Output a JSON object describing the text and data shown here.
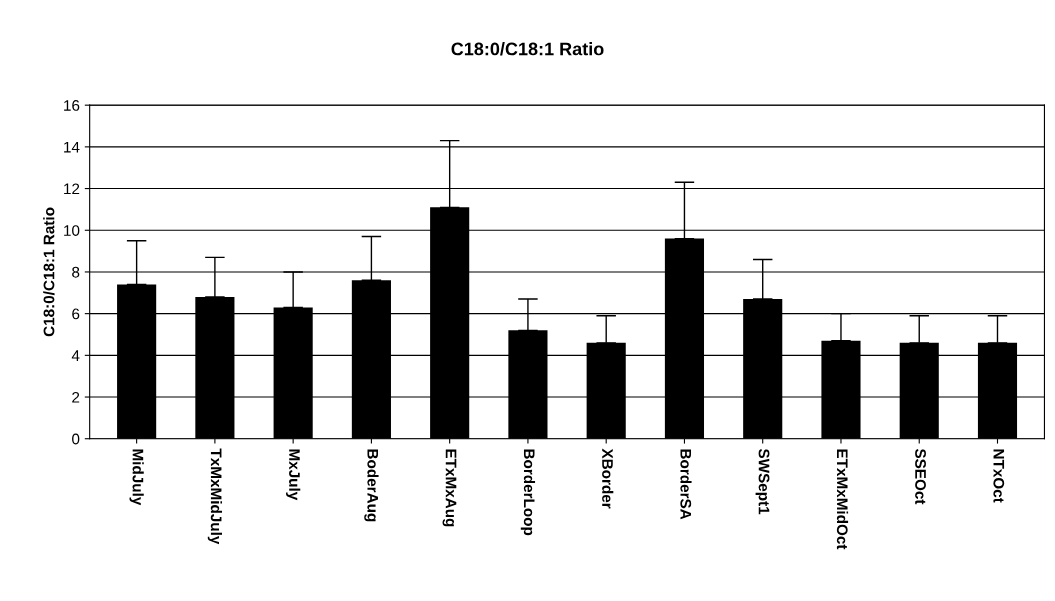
{
  "chart_data": {
    "type": "bar",
    "title": "C18:0/C18:1 Ratio",
    "ylabel": "C18:0/C18:1 Ratio",
    "categories": [
      "MidJuly",
      "TxMxMidJuly",
      "MxJuly",
      "BoderAug",
      "ETxMxAug",
      "BorderLoop",
      "XBorder",
      "BorderSA",
      "SWSept1",
      "ETxMxMidOct",
      "SSEOct",
      "NTxOct"
    ],
    "values": [
      7.4,
      6.8,
      6.3,
      7.6,
      11.1,
      5.2,
      4.6,
      9.6,
      6.7,
      4.7,
      4.6,
      4.6
    ],
    "errors": [
      [
        7.4,
        9.5
      ],
      [
        6.8,
        8.7
      ],
      [
        6.3,
        8.0
      ],
      [
        7.6,
        9.7
      ],
      [
        11.1,
        14.3
      ],
      [
        5.2,
        6.7
      ],
      [
        4.6,
        5.9
      ],
      [
        9.6,
        12.3
      ],
      [
        6.7,
        8.6
      ],
      [
        4.7,
        6.0
      ],
      [
        4.6,
        5.9
      ],
      [
        4.6,
        5.9
      ]
    ],
    "color": "#000000",
    "ylim": [
      0,
      16
    ],
    "yticks": [
      0,
      2,
      4,
      6,
      8,
      10,
      12,
      14,
      16
    ],
    "grid": "y",
    "legend": false
  }
}
